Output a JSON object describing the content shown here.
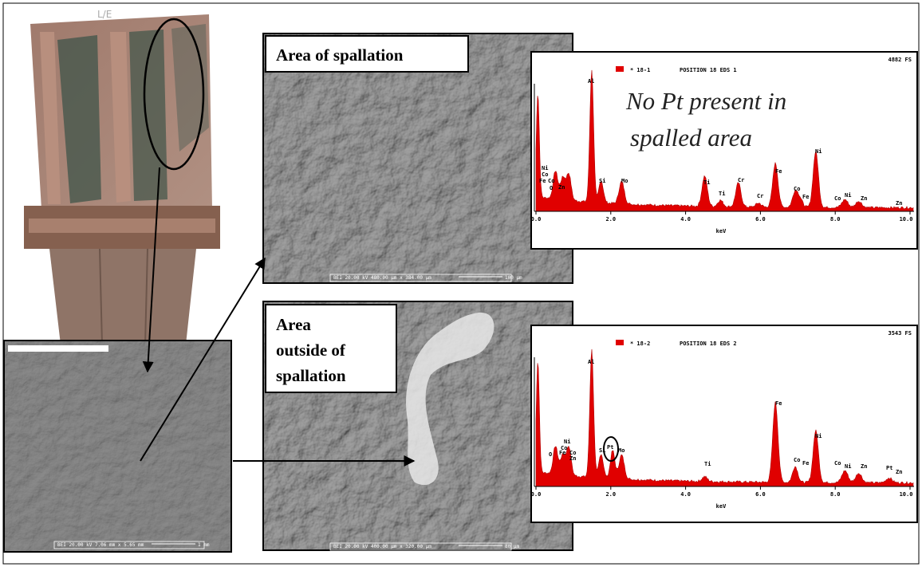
{
  "photo": {
    "label": "L/E"
  },
  "sem_left": {
    "info": "BEI  20.00 kV  7.06 mm x 5.65 mm",
    "scale": "1 mm"
  },
  "sem_top": {
    "caption": "Area of spallation",
    "info": "BEI  20.00 kV  480.00 µm x 384.00 µm",
    "scale": "100 µm"
  },
  "sem_bottom": {
    "caption": [
      "Area",
      "outside of",
      "spallation"
    ],
    "info": "BEI  20.00 kV  400.00 µm x 320.00 µm",
    "scale": "80 µm"
  },
  "spectrum_top": {
    "legend": "* 18-1",
    "title": "POSITION 18 EDS 1",
    "full_scale": "4882 FS",
    "annotation": [
      "No Pt present in",
      "spalled area"
    ],
    "x_ticks": [
      "0.0",
      "2.0",
      "4.0",
      "6.0",
      "8.0",
      "10.0"
    ],
    "x_label": "keV",
    "peaks": [
      "Al",
      "Ni",
      "Co",
      "Fe",
      "Co",
      "O",
      "Zn",
      "Si",
      "Mo",
      "Ti",
      "Ti",
      "Cr",
      "Cr",
      "Fe",
      "Co",
      "Fe",
      "Ni",
      "Co",
      "Ni",
      "Zn",
      "Zn"
    ]
  },
  "spectrum_bottom": {
    "legend": "* 18-2",
    "title": "POSITION 18 EDS 2",
    "full_scale": "3543 FS",
    "x_ticks": [
      "0.0",
      "2.0",
      "4.0",
      "6.0",
      "8.0",
      "10.0"
    ],
    "x_label": "keV",
    "peaks": [
      "Al",
      "Ni",
      "Co",
      "Fe",
      "Co",
      "O",
      "Zn",
      "Si",
      "Pt",
      "Mo",
      "Ti",
      "Fe",
      "Ni",
      "Co",
      "Fe",
      "Co",
      "Ni",
      "Zn",
      "Pt",
      "Zn"
    ]
  }
}
